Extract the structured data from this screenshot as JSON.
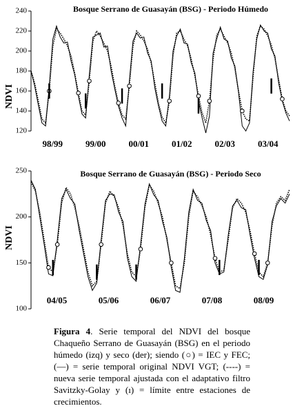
{
  "chart_data": [
    {
      "type": "line",
      "title": "Bosque Serrano de Guasayán (BSG) - Periodo Húmedo",
      "y_label": "NDVI",
      "ylim": [
        120,
        240
      ],
      "yticks": [
        120,
        140,
        160,
        180,
        200,
        220,
        240
      ],
      "period_labels": [
        "98/99",
        "99/00",
        "00/01",
        "01/02",
        "02/03",
        "03/04"
      ],
      "series": [
        {
          "kind": "line",
          "style": "solid",
          "color": "#000000",
          "values": [
            180,
            165,
            146,
            128,
            125,
            165,
            212,
            225,
            214,
            208,
            209,
            190,
            176,
            155,
            137,
            133,
            176,
            214,
            216,
            218,
            204,
            205,
            180,
            162,
            145,
            133,
            125,
            170,
            210,
            218,
            213,
            214,
            198,
            190,
            163,
            145,
            130,
            125,
            155,
            200,
            215,
            222,
            208,
            207,
            188,
            178,
            150,
            133,
            118,
            135,
            198,
            212,
            224,
            212,
            210,
            193,
            185,
            158,
            125,
            120,
            128,
            180,
            212,
            226,
            220,
            218,
            202,
            195,
            168,
            150,
            138,
            130
          ]
        },
        {
          "kind": "line",
          "style": "dotted",
          "color": "#000000",
          "values": [
            180,
            168,
            150,
            132,
            128,
            160,
            205,
            222,
            218,
            212,
            205,
            195,
            178,
            158,
            140,
            136,
            170,
            210,
            220,
            215,
            208,
            200,
            185,
            165,
            148,
            136,
            132,
            165,
            205,
            220,
            216,
            210,
            202,
            188,
            168,
            148,
            134,
            128,
            150,
            195,
            218,
            220,
            212,
            205,
            192,
            175,
            155,
            138,
            128,
            150,
            192,
            216,
            222,
            215,
            208,
            198,
            182,
            160,
            140,
            132,
            130,
            175,
            215,
            225,
            222,
            215,
            206,
            192,
            172,
            152,
            140,
            135
          ]
        },
        {
          "kind": "marker",
          "color": "#000000",
          "values": [
            null,
            null,
            null,
            null,
            null,
            160,
            null,
            null,
            null,
            null,
            null,
            null,
            null,
            158,
            null,
            null,
            170,
            null,
            null,
            null,
            null,
            null,
            null,
            null,
            148,
            null,
            null,
            165,
            null,
            null,
            null,
            null,
            null,
            null,
            null,
            null,
            null,
            null,
            150,
            null,
            null,
            null,
            null,
            null,
            null,
            null,
            155,
            null,
            null,
            150,
            null,
            null,
            null,
            null,
            null,
            null,
            null,
            null,
            140,
            null,
            null,
            null,
            null,
            null,
            null,
            null,
            null,
            null,
            null,
            152,
            null,
            null
          ]
        },
        {
          "kind": "limit",
          "color": "#000000",
          "values": [
            null,
            null,
            null,
            null,
            null,
            160,
            null,
            null,
            null,
            null,
            null,
            null,
            null,
            null,
            null,
            150,
            null,
            null,
            null,
            null,
            null,
            null,
            null,
            null,
            null,
            155,
            null,
            null,
            null,
            null,
            null,
            null,
            null,
            null,
            null,
            null,
            160,
            null,
            null,
            null,
            null,
            null,
            null,
            null,
            null,
            null,
            145,
            null,
            null,
            null,
            null,
            null,
            null,
            null,
            null,
            null,
            null,
            null,
            null,
            null,
            null,
            null,
            null,
            null,
            null,
            null,
            165,
            null,
            null,
            null,
            null,
            null
          ]
        }
      ]
    },
    {
      "type": "line",
      "title": "Bosque Serrano de Guasayán (BSG) - Periodo Seco",
      "y_label": "NDVI",
      "ylim": [
        100,
        250
      ],
      "yticks": [
        100,
        150,
        200,
        250
      ],
      "period_labels": [
        "04/05",
        "05/06",
        "06/07",
        "07/08",
        "08/09"
      ],
      "series": [
        {
          "kind": "line",
          "style": "solid",
          "color": "#000000",
          "values": [
            240,
            230,
            200,
            170,
            138,
            136,
            175,
            220,
            230,
            220,
            214,
            185,
            160,
            135,
            120,
            128,
            175,
            218,
            225,
            224,
            205,
            195,
            155,
            135,
            130,
            170,
            214,
            236,
            224,
            218,
            195,
            178,
            145,
            120,
            118,
            155,
            205,
            230,
            218,
            215,
            196,
            185,
            150,
            138,
            140,
            180,
            212,
            218,
            210,
            208,
            180,
            155,
            135,
            132,
            148,
            195,
            212,
            220,
            215,
            225
          ]
        },
        {
          "kind": "line",
          "style": "dotted",
          "color": "#000000",
          "values": [
            238,
            228,
            205,
            175,
            145,
            140,
            170,
            215,
            232,
            225,
            210,
            190,
            165,
            140,
            125,
            130,
            170,
            215,
            228,
            222,
            210,
            190,
            160,
            140,
            135,
            165,
            210,
            235,
            228,
            215,
            200,
            175,
            150,
            125,
            122,
            150,
            200,
            228,
            222,
            212,
            200,
            180,
            155,
            140,
            142,
            175,
            210,
            220,
            215,
            205,
            185,
            160,
            140,
            135,
            150,
            190,
            215,
            222,
            218,
            230
          ]
        },
        {
          "kind": "marker",
          "color": "#000000",
          "values": [
            null,
            null,
            null,
            null,
            145,
            null,
            170,
            null,
            null,
            null,
            null,
            null,
            null,
            null,
            null,
            null,
            170,
            null,
            null,
            null,
            null,
            null,
            null,
            null,
            null,
            165,
            null,
            null,
            null,
            null,
            null,
            null,
            150,
            null,
            null,
            null,
            null,
            null,
            null,
            null,
            null,
            null,
            155,
            null,
            null,
            null,
            null,
            null,
            null,
            null,
            null,
            160,
            null,
            null,
            150,
            null,
            null,
            null,
            null,
            null
          ]
        },
        {
          "kind": "limit",
          "color": "#000000",
          "values": [
            null,
            null,
            null,
            null,
            null,
            145,
            null,
            null,
            null,
            null,
            null,
            null,
            null,
            null,
            null,
            140,
            null,
            null,
            null,
            null,
            null,
            null,
            null,
            null,
            140,
            null,
            null,
            null,
            null,
            null,
            null,
            null,
            null,
            null,
            null,
            null,
            null,
            null,
            null,
            null,
            null,
            null,
            null,
            145,
            null,
            null,
            null,
            null,
            null,
            null,
            null,
            null,
            145,
            null,
            null,
            null,
            null,
            null,
            null,
            null
          ]
        }
      ]
    }
  ],
  "caption": {
    "label": "Figura 4",
    "text": ". Serie temporal del NDVI del bosque Chaqueño Serrano de Guasayán (BSG) en el periodo húmedo (izq) y seco (der); siendo (○) = IEC y FEC; (—) = serie temporal original NDVI VGT; (----) = nueva serie temporal ajustada con el adaptativo filtro Savitzky-Golay y (ı) = límite entre estaciones de crecimientos."
  }
}
